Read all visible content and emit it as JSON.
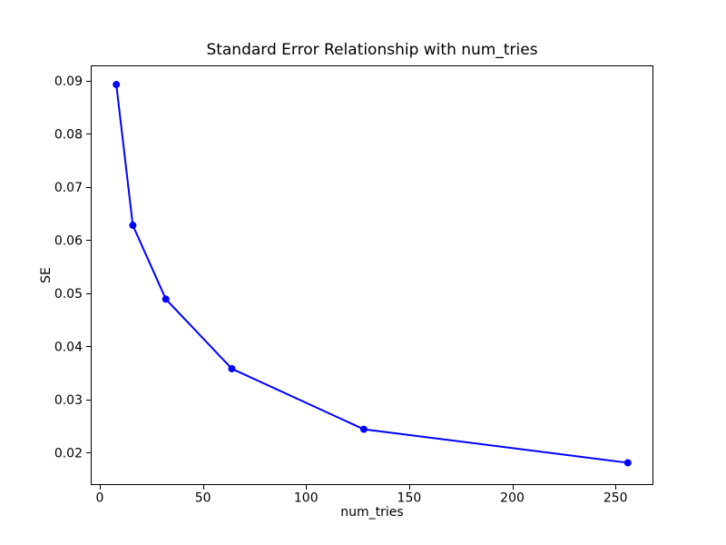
{
  "chart_data": {
    "type": "line",
    "title": "Standard Error Relationship with num_tries",
    "xlabel": "num_tries",
    "ylabel": "SE",
    "series": [
      {
        "name": "SE",
        "x": [
          8,
          16,
          32,
          64,
          128,
          256
        ],
        "y": [
          0.0893,
          0.0628,
          0.0489,
          0.0358,
          0.0244,
          0.0181
        ],
        "color": "#0000ff",
        "marker": "circle",
        "marker_size": 8,
        "line_width": 2
      }
    ],
    "xlim": [
      -4.4,
      268.4
    ],
    "ylim": [
      0.0139,
      0.0929
    ],
    "xticks": [
      0,
      50,
      100,
      150,
      200,
      250
    ],
    "yticks": [
      0.02,
      0.03,
      0.04,
      0.05,
      0.06,
      0.07,
      0.08,
      0.09
    ],
    "ytick_decimals": 2,
    "grid": false,
    "legend": null,
    "background_color": "#ffffff",
    "spine_color": "#000000",
    "text_color": "#000000"
  }
}
